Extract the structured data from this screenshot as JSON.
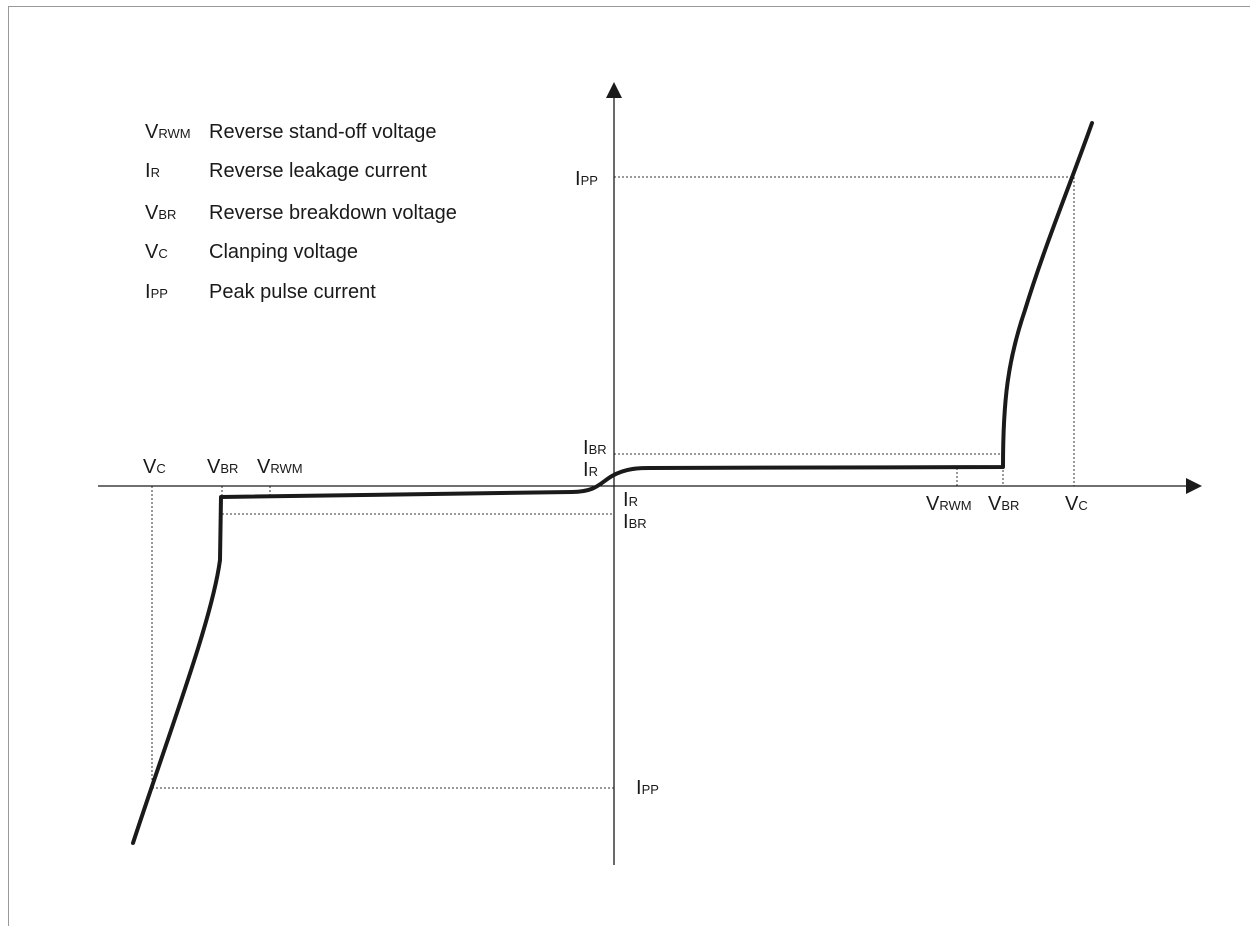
{
  "legend": [
    {
      "symbol": {
        "main": "V",
        "sub": "RWM"
      },
      "text": "Reverse stand-off voltage"
    },
    {
      "symbol": {
        "main": "I",
        "sub": "R"
      },
      "text": "Reverse leakage current"
    },
    {
      "symbol": {
        "main": "V",
        "sub": "BR"
      },
      "text": "Reverse breakdown voltage"
    },
    {
      "symbol": {
        "main": "V",
        "sub": "C"
      },
      "text": "Clanping voltage"
    },
    {
      "symbol": {
        "main": "I",
        "sub": "PP"
      },
      "text": "Peak pulse current"
    }
  ],
  "labels": {
    "ipp_pos": {
      "main": "I",
      "sub": "PP"
    },
    "ibr_pos": {
      "main": "I",
      "sub": "BR"
    },
    "ir_pos": {
      "main": "I",
      "sub": "R"
    },
    "ir_neg": {
      "main": "I",
      "sub": "R"
    },
    "ibr_neg": {
      "main": "I",
      "sub": "BR"
    },
    "ipp_neg": {
      "main": "I",
      "sub": "PP"
    },
    "vc_neg": {
      "main": "V",
      "sub": "C"
    },
    "vbr_neg": {
      "main": "V",
      "sub": "BR"
    },
    "vrwm_neg": {
      "main": "V",
      "sub": "RWM"
    },
    "vrwm_pos": {
      "main": "V",
      "sub": "RWM"
    },
    "vbr_pos": {
      "main": "V",
      "sub": "BR"
    },
    "vc_pos": {
      "main": "V",
      "sub": "C"
    }
  },
  "colors": {
    "curve": "#1a1a1a",
    "axis": "#1a1a1a",
    "guide": "#333333",
    "frame": "#999999"
  }
}
